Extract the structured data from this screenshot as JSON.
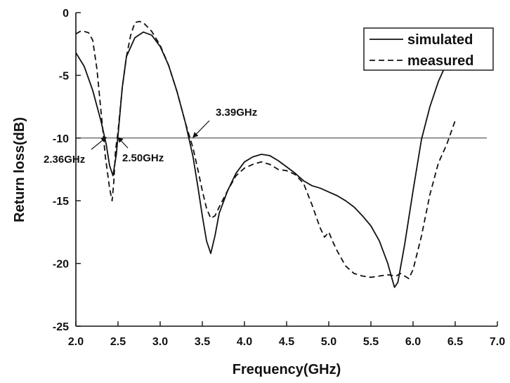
{
  "chart_data": {
    "type": "line",
    "title": "",
    "xlabel": "Frequency(GHz)",
    "ylabel": "Return loss(dB)",
    "xlim": [
      2.0,
      7.0
    ],
    "ylim": [
      -25,
      0
    ],
    "xticks": [
      "2.0",
      "2.5",
      "3.0",
      "3.5",
      "4.0",
      "4.5",
      "5.0",
      "5.5",
      "6.0",
      "6.5",
      "7.0"
    ],
    "yticks": [
      "0",
      "-5",
      "-10",
      "-15",
      "-20",
      "-25"
    ],
    "grid": false,
    "legend_position": "top-right",
    "reference_line": {
      "y": -10
    },
    "series": [
      {
        "name": "simulated",
        "style": "solid",
        "x": [
          2.0,
          2.1,
          2.2,
          2.3,
          2.36,
          2.4,
          2.44,
          2.48,
          2.5,
          2.55,
          2.6,
          2.7,
          2.8,
          2.9,
          3.0,
          3.1,
          3.2,
          3.3,
          3.39,
          3.45,
          3.5,
          3.55,
          3.6,
          3.65,
          3.7,
          3.8,
          3.9,
          4.0,
          4.1,
          4.2,
          4.3,
          4.4,
          4.5,
          4.6,
          4.7,
          4.8,
          4.9,
          5.0,
          5.1,
          5.2,
          5.3,
          5.4,
          5.5,
          5.6,
          5.7,
          5.75,
          5.78,
          5.82,
          5.9,
          6.0,
          6.1,
          6.2,
          6.3,
          6.4,
          6.5
        ],
        "y": [
          -3.2,
          -4.3,
          -6.2,
          -8.7,
          -10.5,
          -12.2,
          -13.0,
          -11.3,
          -9.8,
          -6.0,
          -3.5,
          -2.0,
          -1.55,
          -1.8,
          -2.7,
          -4.2,
          -6.3,
          -8.8,
          -11.5,
          -14.0,
          -16.2,
          -18.2,
          -19.2,
          -17.8,
          -16.0,
          -14.2,
          -12.8,
          -11.9,
          -11.5,
          -11.3,
          -11.4,
          -11.8,
          -12.3,
          -12.8,
          -13.4,
          -13.8,
          -14.0,
          -14.3,
          -14.6,
          -15.0,
          -15.5,
          -16.2,
          -17.0,
          -18.2,
          -20.0,
          -21.2,
          -21.9,
          -21.5,
          -18.5,
          -14.2,
          -10.1,
          -7.5,
          -5.5,
          -4.0,
          -3.0
        ]
      },
      {
        "name": "measured",
        "style": "dashed",
        "x": [
          2.0,
          2.05,
          2.1,
          2.15,
          2.2,
          2.25,
          2.3,
          2.35,
          2.4,
          2.43,
          2.45,
          2.47,
          2.5,
          2.55,
          2.6,
          2.65,
          2.7,
          2.75,
          2.8,
          2.9,
          3.0,
          3.1,
          3.2,
          3.3,
          3.39,
          3.45,
          3.5,
          3.55,
          3.6,
          3.65,
          3.7,
          3.8,
          3.9,
          4.0,
          4.1,
          4.2,
          4.3,
          4.4,
          4.5,
          4.6,
          4.7,
          4.8,
          4.9,
          4.95,
          5.0,
          5.05,
          5.1,
          5.2,
          5.3,
          5.4,
          5.5,
          5.6,
          5.7,
          5.8,
          5.85,
          5.9,
          5.95,
          6.0,
          6.1,
          6.2,
          6.3,
          6.4,
          6.5
        ],
        "y": [
          -1.7,
          -1.5,
          -1.5,
          -1.6,
          -2.2,
          -4.5,
          -8.0,
          -11.5,
          -14.0,
          -15.0,
          -13.5,
          -11.0,
          -9.5,
          -6.0,
          -3.5,
          -1.8,
          -0.8,
          -0.7,
          -0.8,
          -1.5,
          -2.6,
          -4.2,
          -6.3,
          -8.8,
          -10.8,
          -12.6,
          -14.2,
          -15.6,
          -16.4,
          -16.2,
          -15.5,
          -14.2,
          -13.0,
          -12.4,
          -12.1,
          -11.9,
          -12.1,
          -12.5,
          -12.6,
          -12.9,
          -13.6,
          -15.3,
          -17.2,
          -17.9,
          -17.5,
          -18.3,
          -19.0,
          -20.2,
          -20.8,
          -21.0,
          -21.1,
          -21.0,
          -20.9,
          -21.0,
          -20.8,
          -21.0,
          -21.2,
          -20.5,
          -17.8,
          -14.5,
          -12.0,
          -10.5,
          -8.6
        ]
      }
    ],
    "annotations": [
      {
        "text": "2.36GHz",
        "x": 2.36,
        "y": -10
      },
      {
        "text": "2.50GHz",
        "x": 2.5,
        "y": -10
      },
      {
        "text": "3.39GHz",
        "x": 3.39,
        "y": -10
      }
    ]
  }
}
